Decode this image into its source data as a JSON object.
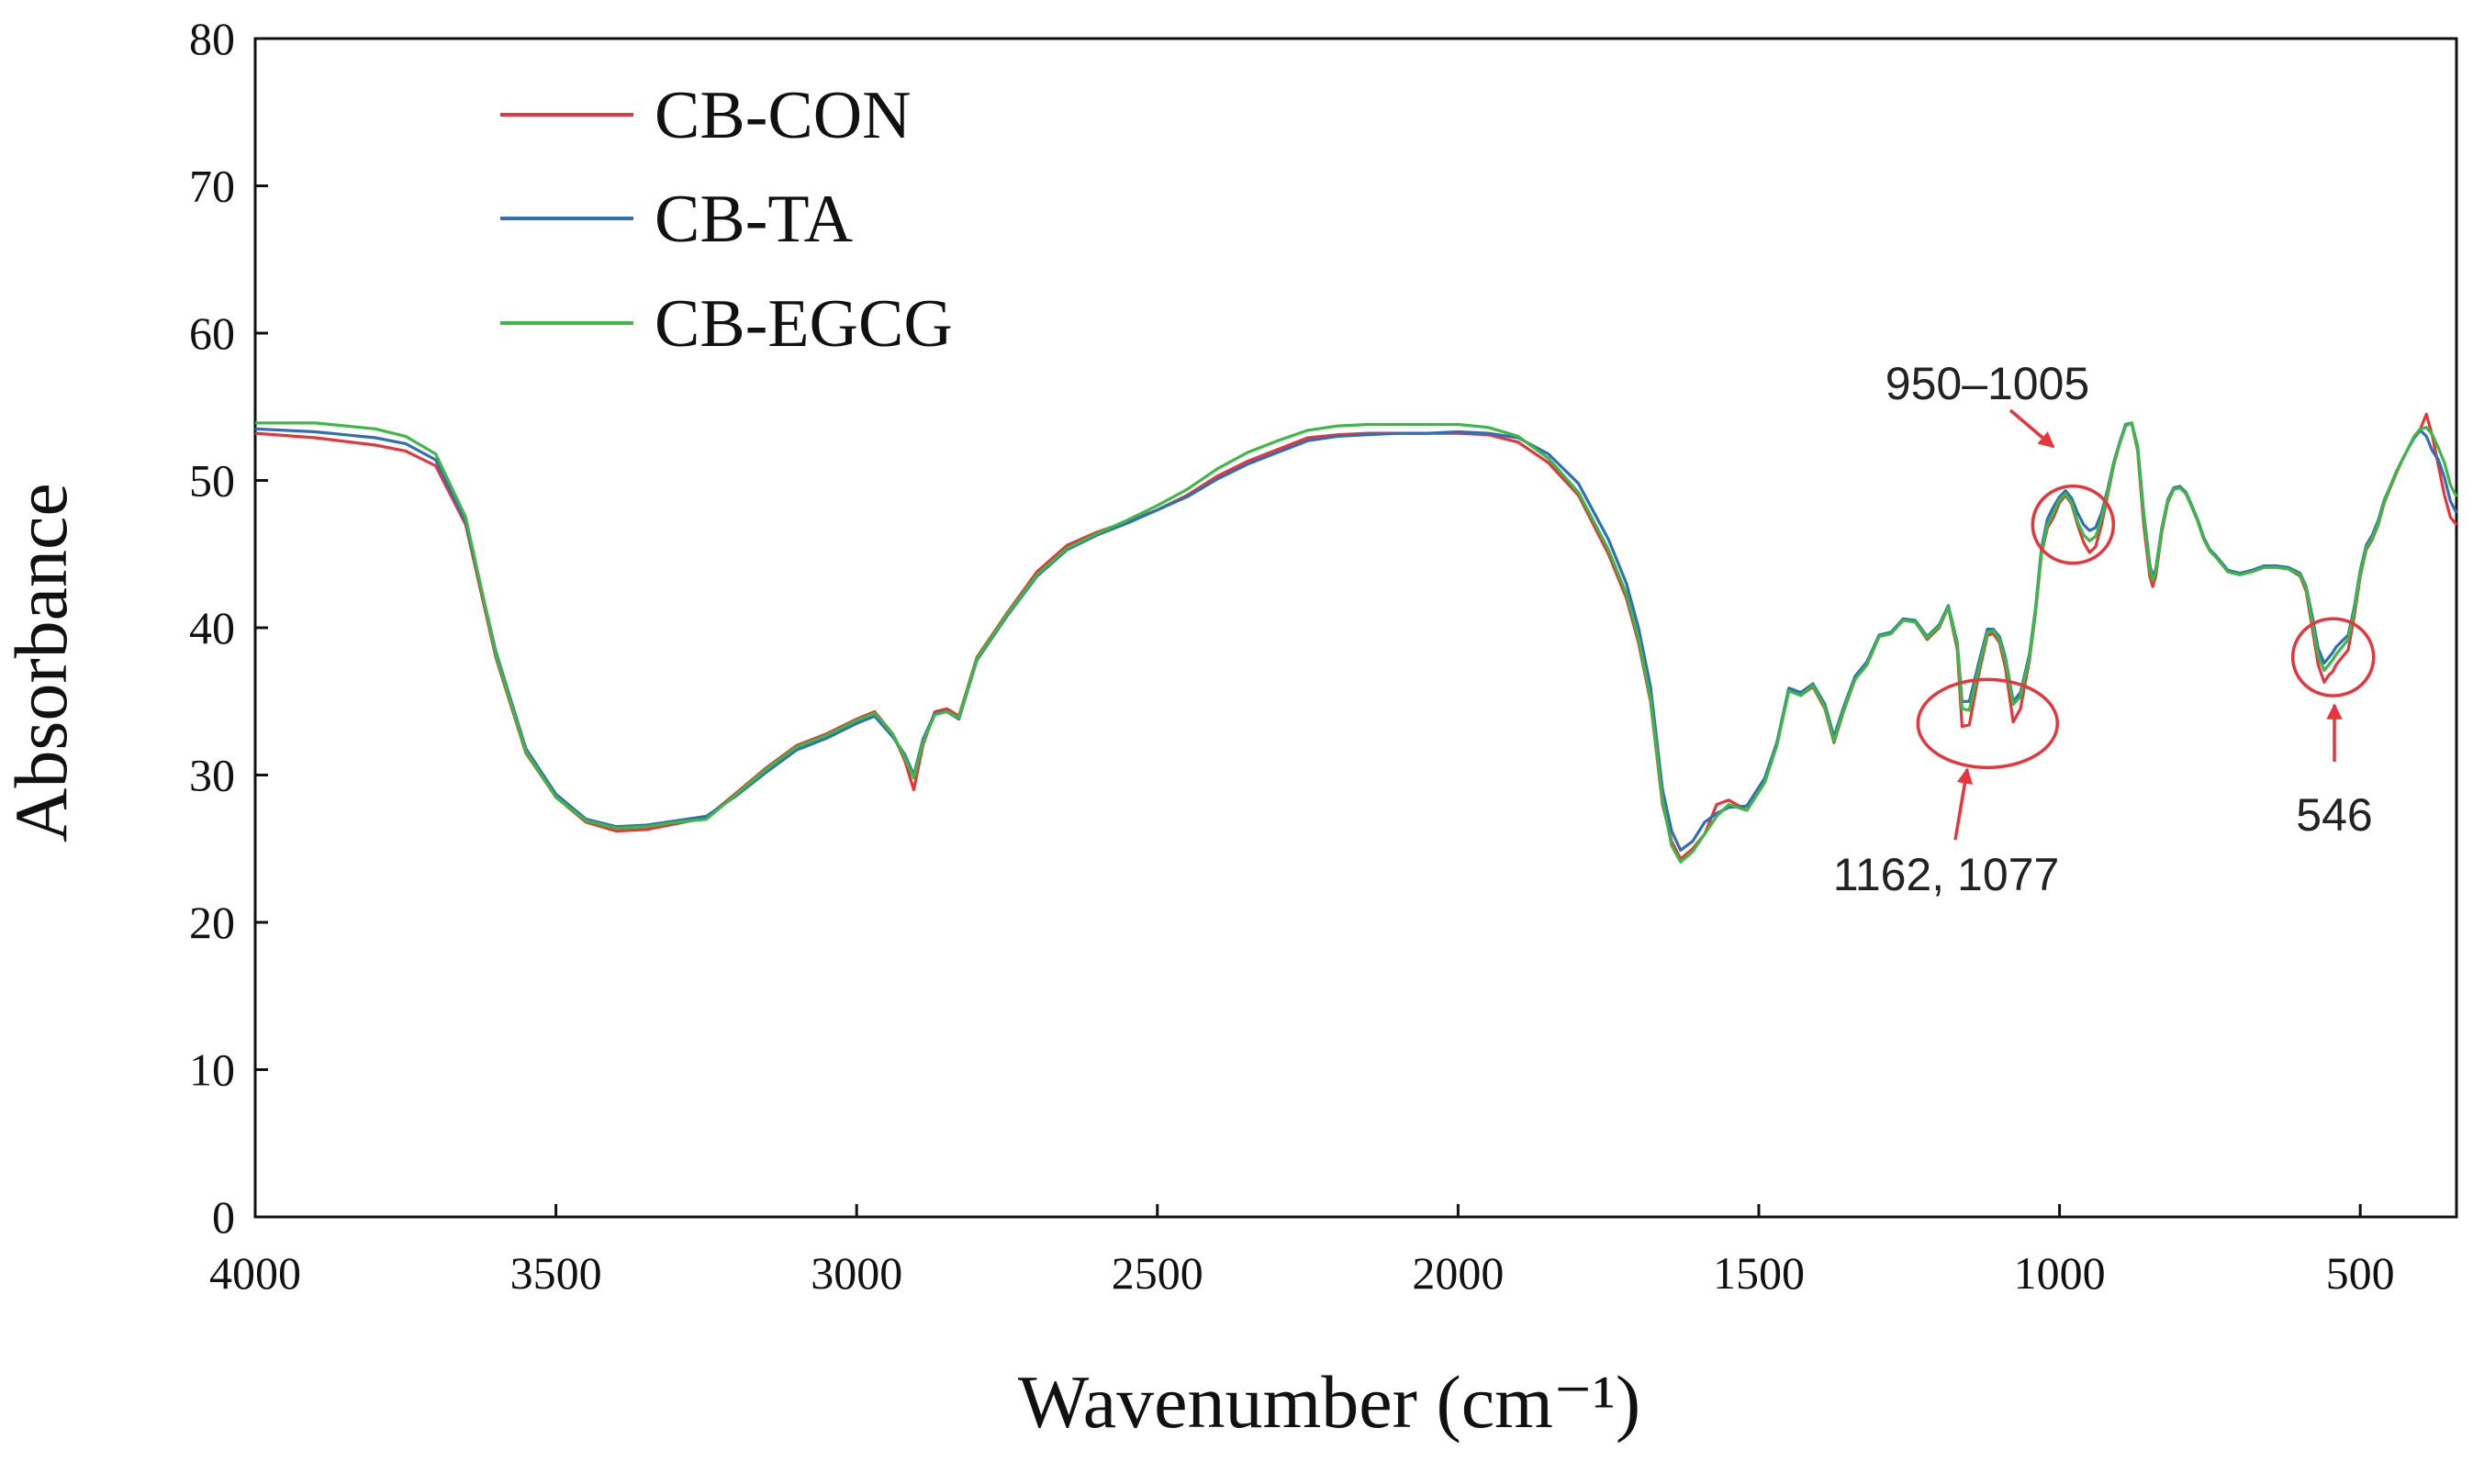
{
  "chart_data": {
    "type": "line",
    "title": "",
    "xlabel": "Wavenumber (cm⁻¹)",
    "ylabel": "Absorbance",
    "xlim": [
      4000,
      340
    ],
    "ylim": [
      0,
      80
    ],
    "x_ticks": [
      "4000",
      "3500",
      "3000",
      "2500",
      "2000",
      "1500",
      "1000",
      "500"
    ],
    "y_ticks": [
      "0",
      "10",
      "20",
      "30",
      "40",
      "50",
      "60",
      "70",
      "80"
    ],
    "grid": false,
    "legend_position": "top-left",
    "series": [
      {
        "name": "CB-CON",
        "color": "#e8343a",
        "x": [
          4000,
          3900,
          3800,
          3750,
          3700,
          3650,
          3600,
          3550,
          3500,
          3450,
          3400,
          3350,
          3300,
          3250,
          3200,
          3150,
          3100,
          3050,
          3000,
          2970,
          2940,
          2920,
          2905,
          2890,
          2870,
          2850,
          2830,
          2800,
          2750,
          2700,
          2650,
          2600,
          2550,
          2500,
          2450,
          2400,
          2350,
          2300,
          2250,
          2200,
          2150,
          2100,
          2050,
          2000,
          1950,
          1900,
          1850,
          1800,
          1750,
          1720,
          1700,
          1680,
          1660,
          1645,
          1630,
          1610,
          1590,
          1570,
          1550,
          1520,
          1490,
          1470,
          1450,
          1430,
          1410,
          1390,
          1375,
          1360,
          1340,
          1320,
          1300,
          1280,
          1260,
          1240,
          1220,
          1200,
          1185,
          1170,
          1162,
          1150,
          1135,
          1120,
          1110,
          1100,
          1090,
          1077,
          1065,
          1050,
          1040,
          1030,
          1020,
          1010,
          1000,
          990,
          980,
          970,
          960,
          950,
          940,
          930,
          920,
          910,
          900,
          890,
          880,
          870,
          860,
          850,
          845,
          840,
          830,
          820,
          810,
          800,
          790,
          780,
          770,
          760,
          750,
          740,
          720,
          700,
          680,
          660,
          640,
          620,
          600,
          590,
          580,
          570,
          560,
          552,
          546,
          540,
          530,
          520,
          510,
          500,
          490,
          480,
          470,
          460,
          450,
          440,
          430,
          420,
          410,
          400,
          390,
          380,
          370,
          360,
          350,
          340
        ],
        "y": [
          53.2,
          52.9,
          52.4,
          52.0,
          51.0,
          47.0,
          38.0,
          31.5,
          28.5,
          26.8,
          26.2,
          26.3,
          26.7,
          27.1,
          28.8,
          30.5,
          32.0,
          32.8,
          33.8,
          34.3,
          32.8,
          31.0,
          29.0,
          32.0,
          34.3,
          34.5,
          34.0,
          38.0,
          41.0,
          43.8,
          45.6,
          46.5,
          47.2,
          48.0,
          49.0,
          50.3,
          51.3,
          52.1,
          52.9,
          53.1,
          53.2,
          53.2,
          53.2,
          53.2,
          53.1,
          52.6,
          51.2,
          49.0,
          45.0,
          42.0,
          39.0,
          35.0,
          28.0,
          25.5,
          24.3,
          25.0,
          26.0,
          28.0,
          28.3,
          27.6,
          29.5,
          32.0,
          35.8,
          35.4,
          36.0,
          34.5,
          32.2,
          34.2,
          36.5,
          37.5,
          39.4,
          39.6,
          40.6,
          40.4,
          39.2,
          40.0,
          41.4,
          38.5,
          33.3,
          33.4,
          36.7,
          39.5,
          39.6,
          39.0,
          37.3,
          33.6,
          34.5,
          37.8,
          41.0,
          45.0,
          46.8,
          47.5,
          48.5,
          49.0,
          48.4,
          47.0,
          45.8,
          45.1,
          45.5,
          47.0,
          49.0,
          51.0,
          52.5,
          53.8,
          53.9,
          52.0,
          47.0,
          43.5,
          42.8,
          43.5,
          46.5,
          48.5,
          49.4,
          49.5,
          49.1,
          48.2,
          47.2,
          46.0,
          45.2,
          44.8,
          43.8,
          43.6,
          43.8,
          44.1,
          44.1,
          44.0,
          43.5,
          42.5,
          40.0,
          37.5,
          36.3,
          36.8,
          37.0,
          37.5,
          38.0,
          38.5,
          40.8,
          43.5,
          45.3,
          46.0,
          47.0,
          48.5,
          49.5,
          50.5,
          51.4,
          52.2,
          53.0,
          53.5,
          54.5,
          53.0,
          51.0,
          49.0,
          47.5,
          47.0
        ]
      },
      {
        "name": "CB-TA",
        "color": "#2e6fb7",
        "x": [
          4000,
          3900,
          3800,
          3750,
          3700,
          3650,
          3600,
          3550,
          3500,
          3450,
          3400,
          3350,
          3300,
          3250,
          3200,
          3150,
          3100,
          3050,
          3000,
          2970,
          2940,
          2920,
          2905,
          2890,
          2870,
          2850,
          2830,
          2800,
          2750,
          2700,
          2650,
          2600,
          2550,
          2500,
          2450,
          2400,
          2350,
          2300,
          2250,
          2200,
          2150,
          2100,
          2050,
          2000,
          1950,
          1900,
          1850,
          1800,
          1750,
          1720,
          1700,
          1680,
          1660,
          1645,
          1630,
          1610,
          1590,
          1570,
          1550,
          1520,
          1490,
          1470,
          1450,
          1430,
          1410,
          1390,
          1375,
          1360,
          1340,
          1320,
          1300,
          1280,
          1260,
          1240,
          1220,
          1200,
          1185,
          1170,
          1162,
          1150,
          1135,
          1120,
          1110,
          1100,
          1090,
          1077,
          1065,
          1050,
          1040,
          1030,
          1020,
          1010,
          1000,
          990,
          980,
          970,
          960,
          950,
          940,
          930,
          920,
          910,
          900,
          890,
          880,
          870,
          860,
          850,
          845,
          840,
          830,
          820,
          810,
          800,
          790,
          780,
          770,
          760,
          750,
          740,
          720,
          700,
          680,
          660,
          640,
          620,
          600,
          590,
          580,
          570,
          560,
          552,
          546,
          540,
          530,
          520,
          510,
          500,
          490,
          480,
          470,
          460,
          450,
          440,
          430,
          420,
          410,
          400,
          390,
          380,
          370,
          360,
          350,
          340
        ],
        "y": [
          53.5,
          53.3,
          52.9,
          52.5,
          51.4,
          47.2,
          38.4,
          31.8,
          28.7,
          27.0,
          26.5,
          26.6,
          26.9,
          27.2,
          28.6,
          30.2,
          31.7,
          32.5,
          33.5,
          34.0,
          32.6,
          31.4,
          30.0,
          32.4,
          34.2,
          34.3,
          33.8,
          37.8,
          40.8,
          43.5,
          45.3,
          46.3,
          47.1,
          48.0,
          48.9,
          50.1,
          51.1,
          51.9,
          52.7,
          53.0,
          53.1,
          53.2,
          53.2,
          53.3,
          53.2,
          52.9,
          51.8,
          49.8,
          46.0,
          43.0,
          40.0,
          36.0,
          29.0,
          26.2,
          24.9,
          25.5,
          26.8,
          27.4,
          27.8,
          27.9,
          29.8,
          32.2,
          35.9,
          35.6,
          36.2,
          34.8,
          32.6,
          34.5,
          36.7,
          37.7,
          39.5,
          39.7,
          40.6,
          40.5,
          39.4,
          40.2,
          41.5,
          39.0,
          35.0,
          35.0,
          37.5,
          39.9,
          39.9,
          39.4,
          38.0,
          35.0,
          35.6,
          38.2,
          41.3,
          45.4,
          47.4,
          48.2,
          48.9,
          49.3,
          48.8,
          47.8,
          47.0,
          46.6,
          46.8,
          47.8,
          49.4,
          51.2,
          52.6,
          53.8,
          53.9,
          52.3,
          47.8,
          44.3,
          43.4,
          44.0,
          46.8,
          48.7,
          49.5,
          49.6,
          49.2,
          48.3,
          47.3,
          46.1,
          45.3,
          44.9,
          43.9,
          43.7,
          43.9,
          44.2,
          44.2,
          44.1,
          43.7,
          42.8,
          40.8,
          38.6,
          37.6,
          38.0,
          38.3,
          38.7,
          39.1,
          39.5,
          41.4,
          43.9,
          45.6,
          46.3,
          47.3,
          48.7,
          49.6,
          50.6,
          51.4,
          52.2,
          52.9,
          53.4,
          53.0,
          52.0,
          51.4,
          50.2,
          48.6,
          47.8
        ]
      },
      {
        "name": "CB-EGCG",
        "color": "#3cb944",
        "x": [
          4000,
          3900,
          3800,
          3750,
          3700,
          3650,
          3600,
          3550,
          3500,
          3450,
          3400,
          3350,
          3300,
          3250,
          3200,
          3150,
          3100,
          3050,
          3000,
          2970,
          2940,
          2920,
          2905,
          2890,
          2870,
          2850,
          2830,
          2800,
          2750,
          2700,
          2650,
          2600,
          2550,
          2500,
          2450,
          2400,
          2350,
          2300,
          2250,
          2200,
          2150,
          2100,
          2050,
          2000,
          1950,
          1900,
          1850,
          1800,
          1750,
          1720,
          1700,
          1680,
          1660,
          1645,
          1630,
          1610,
          1590,
          1570,
          1550,
          1520,
          1490,
          1470,
          1450,
          1430,
          1410,
          1390,
          1375,
          1360,
          1340,
          1320,
          1300,
          1280,
          1260,
          1240,
          1220,
          1200,
          1185,
          1170,
          1162,
          1150,
          1135,
          1120,
          1110,
          1100,
          1090,
          1077,
          1065,
          1050,
          1040,
          1030,
          1020,
          1010,
          1000,
          990,
          980,
          970,
          960,
          950,
          940,
          930,
          920,
          910,
          900,
          890,
          880,
          870,
          860,
          850,
          845,
          840,
          830,
          820,
          810,
          800,
          790,
          780,
          770,
          760,
          750,
          740,
          720,
          700,
          680,
          660,
          640,
          620,
          600,
          590,
          580,
          570,
          560,
          552,
          546,
          540,
          530,
          520,
          510,
          500,
          490,
          480,
          470,
          460,
          450,
          440,
          430,
          420,
          410,
          400,
          390,
          380,
          370,
          360,
          350,
          340
        ],
        "y": [
          53.9,
          53.9,
          53.5,
          53.0,
          51.8,
          47.5,
          38.2,
          31.6,
          28.5,
          26.9,
          26.4,
          26.5,
          26.8,
          27.0,
          28.7,
          30.4,
          31.9,
          32.7,
          33.7,
          34.2,
          32.8,
          31.2,
          29.8,
          32.2,
          34.1,
          34.3,
          33.9,
          37.9,
          40.9,
          43.6,
          45.4,
          46.4,
          47.3,
          48.3,
          49.4,
          50.8,
          51.9,
          52.7,
          53.4,
          53.7,
          53.8,
          53.8,
          53.8,
          53.8,
          53.6,
          53.0,
          51.5,
          49.2,
          45.3,
          42.3,
          39.3,
          35.2,
          28.3,
          25.2,
          24.1,
          24.8,
          26.0,
          27.2,
          28.0,
          27.6,
          29.5,
          32.0,
          35.7,
          35.4,
          36.1,
          34.6,
          32.3,
          34.3,
          36.5,
          37.5,
          39.4,
          39.6,
          40.5,
          40.4,
          39.3,
          40.1,
          41.4,
          38.8,
          34.5,
          34.4,
          37.1,
          39.7,
          39.8,
          39.2,
          37.8,
          34.8,
          35.3,
          38.0,
          41.1,
          45.1,
          47.0,
          47.8,
          48.7,
          49.1,
          48.5,
          47.2,
          46.3,
          45.9,
          46.2,
          47.4,
          49.2,
          51.1,
          52.5,
          53.7,
          53.9,
          52.1,
          47.6,
          44.0,
          43.2,
          43.8,
          46.7,
          48.6,
          49.4,
          49.5,
          49.1,
          48.2,
          47.2,
          46.0,
          45.2,
          44.8,
          43.8,
          43.6,
          43.8,
          44.1,
          44.1,
          44.0,
          43.6,
          42.7,
          40.4,
          38.1,
          37.1,
          37.5,
          37.8,
          38.2,
          38.7,
          39.2,
          41.2,
          43.7,
          45.4,
          46.1,
          47.1,
          48.6,
          49.6,
          50.6,
          51.4,
          52.2,
          53.0,
          53.5,
          53.6,
          53.1,
          52.2,
          51.2,
          49.7,
          48.9
        ]
      }
    ],
    "annotations": [
      {
        "label": "950–1005",
        "marker": "circle",
        "x_range": [
          950,
          1005
        ],
        "y_center": 47
      },
      {
        "label": "1162, 1077",
        "marker": "circle",
        "x_range": [
          1077,
          1162
        ],
        "y_center": 33.5
      },
      {
        "label": "546",
        "marker": "circle",
        "x_range": [
          530,
          560
        ],
        "y_center": 38
      }
    ],
    "annotation_color": "#e8343a"
  }
}
